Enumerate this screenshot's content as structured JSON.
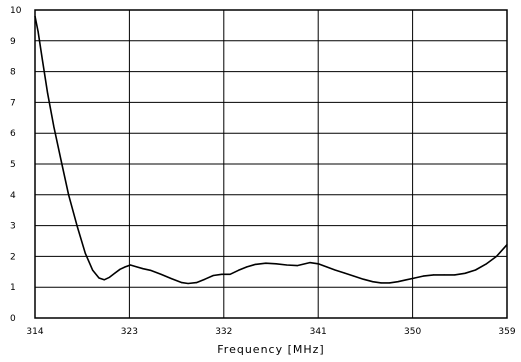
{
  "chart_data": {
    "type": "line",
    "title": "",
    "xlabel": "Frequency [MHz]",
    "ylabel": "",
    "xlim": [
      314,
      359
    ],
    "ylim": [
      0,
      10
    ],
    "grid": true,
    "legend": "none",
    "x_ticks": [
      "314",
      "323",
      "332",
      "341",
      "350",
      "359"
    ],
    "y_ticks": [
      "0",
      "1",
      "2",
      "3",
      "4",
      "5",
      "6",
      "7",
      "8",
      "9",
      "10"
    ],
    "series": [
      {
        "x": [
          314,
          314.3,
          314.7,
          315.2,
          315.8,
          316.5,
          317.2,
          318.0,
          318.8,
          319.5,
          320.1,
          320.6,
          321.1,
          321.6,
          322.1,
          322.6,
          323.1,
          323.7,
          324.3,
          325.0,
          326.0,
          327.0,
          328.0,
          328.6,
          329.4,
          330.2,
          331.0,
          331.8,
          332.6,
          333.4,
          334.2,
          335.0,
          336.0,
          337.0,
          338.0,
          339.0,
          340.2,
          341.0,
          341.8,
          342.6,
          343.5,
          344.4,
          345.3,
          346.2,
          347.0,
          347.8,
          348.6,
          349.4,
          350.2,
          351.0,
          352.0,
          353.0,
          354.0,
          355.0,
          356.0,
          357.0,
          358.0,
          359.0
        ],
        "values": [
          9.8,
          9.3,
          8.4,
          7.3,
          6.2,
          5.1,
          4.0,
          3.0,
          2.1,
          1.55,
          1.3,
          1.24,
          1.32,
          1.45,
          1.58,
          1.66,
          1.72,
          1.66,
          1.6,
          1.55,
          1.42,
          1.28,
          1.15,
          1.12,
          1.15,
          1.26,
          1.38,
          1.42,
          1.42,
          1.55,
          1.66,
          1.74,
          1.78,
          1.76,
          1.72,
          1.7,
          1.8,
          1.76,
          1.66,
          1.56,
          1.46,
          1.36,
          1.26,
          1.18,
          1.14,
          1.14,
          1.18,
          1.24,
          1.3,
          1.36,
          1.4,
          1.4,
          1.4,
          1.45,
          1.56,
          1.75,
          2.0,
          2.38
        ],
        "color": "#000000"
      }
    ]
  }
}
